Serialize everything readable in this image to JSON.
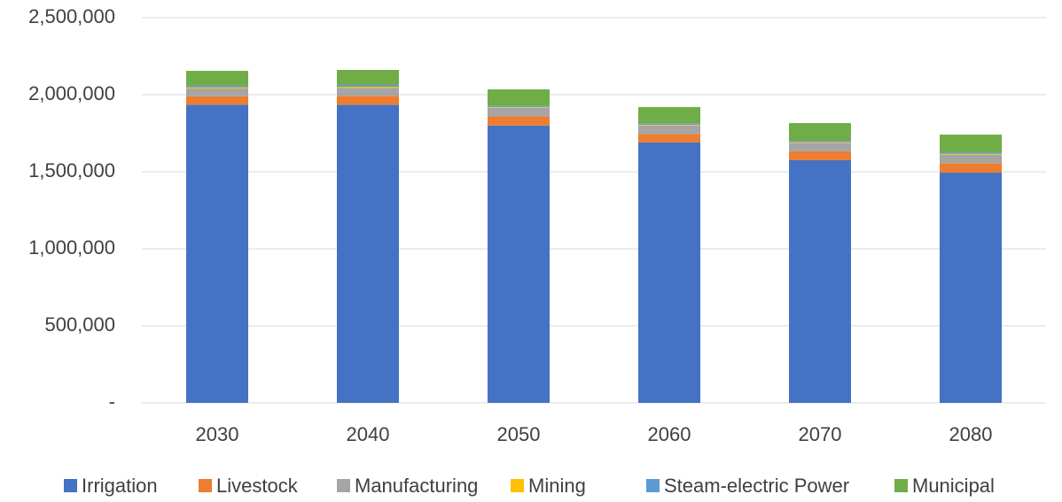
{
  "chart_data": {
    "type": "stacked_bar",
    "categories": [
      "2030",
      "2040",
      "2050",
      "2060",
      "2070",
      "2080"
    ],
    "series": [
      {
        "name": "Irrigation",
        "color": "#4472c4",
        "values": [
          1935000,
          1935000,
          1800000,
          1690000,
          1575000,
          1494000
        ]
      },
      {
        "name": "Livestock",
        "color": "#ed7d31",
        "values": [
          55000,
          58000,
          60000,
          55000,
          58000,
          62000
        ]
      },
      {
        "name": "Manufacturing",
        "color": "#a5a5a5",
        "values": [
          50000,
          50000,
          55000,
          55000,
          55000,
          55000
        ]
      },
      {
        "name": "Mining",
        "color": "#ffc000",
        "values": [
          8000,
          8000,
          5000,
          5000,
          5000,
          5000
        ]
      },
      {
        "name": "Steam-electric Power",
        "color": "#5b9bd5",
        "values": [
          12000,
          12000,
          10000,
          10000,
          8000,
          8000
        ]
      },
      {
        "name": "Municipal",
        "color": "#70ad47",
        "values": [
          95000,
          98000,
          105000,
          105000,
          115000,
          117000
        ]
      }
    ],
    "ylim": [
      0,
      2500000
    ],
    "yticks": [
      {
        "value": 0,
        "label": "-"
      },
      {
        "value": 500000,
        "label": "500,000"
      },
      {
        "value": 1000000,
        "label": "1,000,000"
      },
      {
        "value": 1500000,
        "label": "1,500,000"
      },
      {
        "value": 2000000,
        "label": "2,000,000"
      },
      {
        "value": 2500000,
        "label": "2,500,000"
      }
    ],
    "grid": true,
    "legend": "bottom"
  }
}
